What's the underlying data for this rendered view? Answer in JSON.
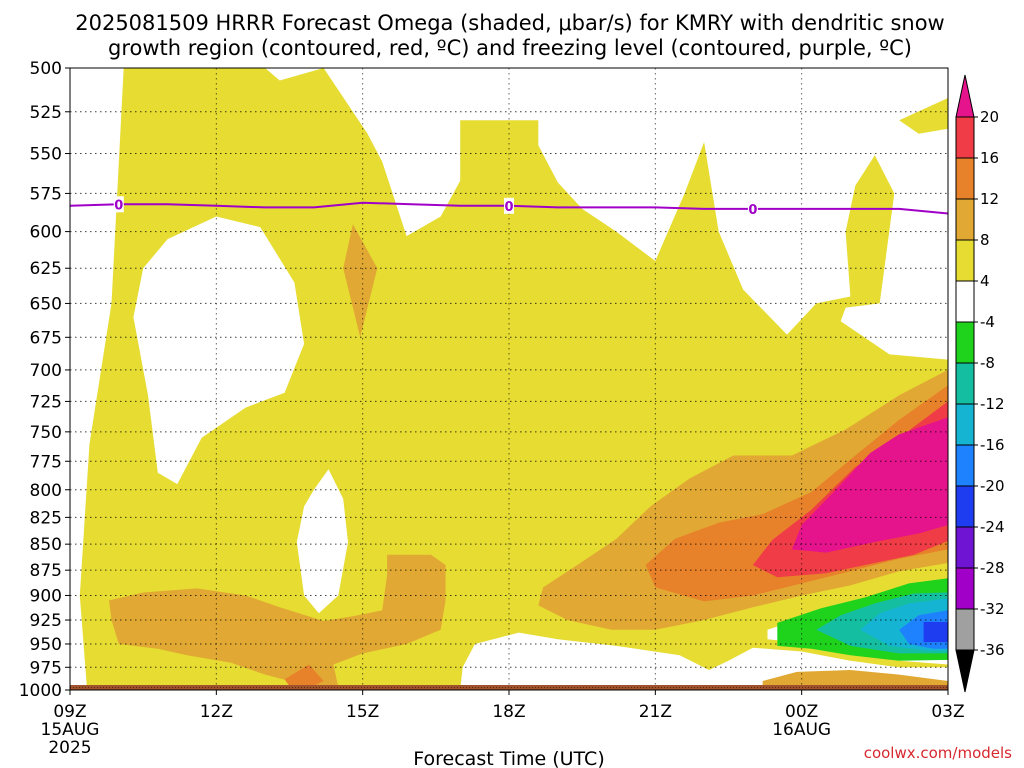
{
  "title_line1": "2025081509 HRRR Forecast Omega (shaded, μbar/s) for KMRY with dendritic snow",
  "title_line2": "growth region (contoured, red, ºC) and freezing level (contoured, purple, ºC)",
  "credit": "coolwx.com/models",
  "colors": {
    "yellow": "#e6dc32",
    "gold": "#e1a933",
    "orange": "#e8822a",
    "red": "#f03c46",
    "magenta": "#e6148c",
    "green": "#1fd21c",
    "teal": "#14bea0",
    "cyan": "#14b4d2",
    "blue": "#1e82ff",
    "freezing_line": "#a000c8",
    "ground": "#a0522d"
  },
  "chart_data": {
    "type": "heatmap",
    "xlabel": "Forecast Time (UTC)",
    "x_ticks": [
      {
        "label": "09Z",
        "hour": 0,
        "sub1": "15AUG",
        "sub2": "2025"
      },
      {
        "label": "12Z",
        "hour": 3,
        "sub1": "",
        "sub2": ""
      },
      {
        "label": "15Z",
        "hour": 6,
        "sub1": "",
        "sub2": ""
      },
      {
        "label": "18Z",
        "hour": 9,
        "sub1": "",
        "sub2": ""
      },
      {
        "label": "21Z",
        "hour": 12,
        "sub1": "",
        "sub2": ""
      },
      {
        "label": "00Z",
        "hour": 15,
        "sub1": "16AUG",
        "sub2": ""
      },
      {
        "label": "03Z",
        "hour": 18,
        "sub1": "",
        "sub2": ""
      }
    ],
    "xlim_hours": [
      0,
      18
    ],
    "y_ticks": [
      "500",
      "525",
      "550",
      "575",
      "600",
      "625",
      "650",
      "675",
      "700",
      "725",
      "750",
      "775",
      "800",
      "825",
      "850",
      "875",
      "900",
      "925",
      "950",
      "975",
      "1000"
    ],
    "y_log_pressure": true,
    "ylim_hpa": [
      500,
      1000
    ],
    "grid": true,
    "colorbar": {
      "labels": [
        "20",
        "16",
        "12",
        "8",
        "4",
        "-4",
        "-8",
        "-12",
        "-16",
        "-20",
        "-24",
        "-28",
        "-32",
        "-36"
      ],
      "bins": [
        {
          "color": "#e6148c"
        },
        {
          "color": "#f03c46"
        },
        {
          "color": "#e8822a"
        },
        {
          "color": "#e1a933"
        },
        {
          "color": "#e6dc32"
        },
        {
          "color": "#ffffff"
        },
        {
          "color": "#1fd21c"
        },
        {
          "color": "#14bea0"
        },
        {
          "color": "#14b4d2"
        },
        {
          "color": "#1e82ff"
        },
        {
          "color": "#1e3cf0"
        },
        {
          "color": "#6e14d2"
        },
        {
          "color": "#a000c8"
        },
        {
          "color": "#a0a0a0"
        }
      ]
    },
    "freezing_level": {
      "label": "0",
      "label_hours": [
        1,
        9,
        14
      ],
      "points": [
        {
          "hour": 0,
          "hpa": 583
        },
        {
          "hour": 1,
          "hpa": 582
        },
        {
          "hour": 2,
          "hpa": 582
        },
        {
          "hour": 3,
          "hpa": 583
        },
        {
          "hour": 4,
          "hpa": 584
        },
        {
          "hour": 5,
          "hpa": 584
        },
        {
          "hour": 6,
          "hpa": 581
        },
        {
          "hour": 7,
          "hpa": 582
        },
        {
          "hour": 8,
          "hpa": 583
        },
        {
          "hour": 9,
          "hpa": 583
        },
        {
          "hour": 10,
          "hpa": 584
        },
        {
          "hour": 11,
          "hpa": 584
        },
        {
          "hour": 12,
          "hpa": 584
        },
        {
          "hour": 13,
          "hpa": 585
        },
        {
          "hour": 14,
          "hpa": 585
        },
        {
          "hour": 15,
          "hpa": 585
        },
        {
          "hour": 16,
          "hpa": 585
        },
        {
          "hour": 17,
          "hpa": 585
        },
        {
          "hour": 18,
          "hpa": 588
        }
      ]
    },
    "regions": [
      {
        "name": "yellow-omega-4-8",
        "color": "#e6dc32",
        "pts": [
          [
            0,
            500
          ],
          [
            18,
            500
          ],
          [
            18,
            1000
          ],
          [
            0,
            1000
          ]
        ]
      },
      {
        "name": "white-top-left",
        "color": "#ffffff",
        "pts": [
          [
            0,
            500
          ],
          [
            1.1,
            500
          ],
          [
            0.85,
            650
          ],
          [
            0.4,
            760
          ],
          [
            0.2,
            900
          ],
          [
            0.35,
            1000
          ],
          [
            0,
            1000
          ]
        ]
      },
      {
        "name": "white-top-mid",
        "color": "#ffffff",
        "pts": [
          [
            4.0,
            500
          ],
          [
            4.3,
            507
          ],
          [
            5.2,
            500
          ]
        ]
      },
      {
        "name": "white-top-center",
        "color": "#ffffff",
        "pts": [
          [
            5.2,
            500
          ],
          [
            6.1,
            538
          ],
          [
            6.4,
            555
          ],
          [
            6.9,
            603
          ],
          [
            7.6,
            590
          ],
          [
            8.0,
            567
          ],
          [
            8.0,
            530
          ],
          [
            9.6,
            530
          ],
          [
            9.6,
            545
          ],
          [
            10.0,
            568
          ],
          [
            10.5,
            585
          ],
          [
            11.2,
            600
          ],
          [
            12.0,
            620
          ],
          [
            12.6,
            575
          ],
          [
            13.0,
            543
          ],
          [
            13.3,
            600
          ],
          [
            13.8,
            640
          ],
          [
            14.7,
            673
          ],
          [
            15.3,
            650
          ],
          [
            16.0,
            645
          ],
          [
            15.9,
            600
          ],
          [
            16.1,
            570
          ],
          [
            16.5,
            551
          ],
          [
            16.9,
            575
          ],
          [
            16.6,
            650
          ],
          [
            15.9,
            653
          ],
          [
            15.8,
            663
          ],
          [
            16.8,
            688
          ],
          [
            18,
            692
          ],
          [
            18,
            500
          ]
        ]
      },
      {
        "name": "yellow-top-right-blob",
        "color": "#e6dc32",
        "pts": [
          [
            17.0,
            530
          ],
          [
            18,
            517
          ],
          [
            18,
            535
          ],
          [
            17.4,
            538
          ]
        ]
      },
      {
        "name": "white-oval-left",
        "color": "#ffffff",
        "pts": [
          [
            2.0,
            605
          ],
          [
            3.0,
            590
          ],
          [
            3.9,
            597
          ],
          [
            4.6,
            635
          ],
          [
            4.8,
            680
          ],
          [
            4.4,
            718
          ],
          [
            3.6,
            730
          ],
          [
            2.7,
            755
          ],
          [
            2.2,
            795
          ],
          [
            1.8,
            785
          ],
          [
            1.6,
            720
          ],
          [
            1.3,
            660
          ],
          [
            1.5,
            625
          ]
        ]
      },
      {
        "name": "white-oval-mid",
        "color": "#ffffff",
        "pts": [
          [
            5.0,
            800
          ],
          [
            5.3,
            782
          ],
          [
            5.6,
            808
          ],
          [
            5.7,
            848
          ],
          [
            5.5,
            900
          ],
          [
            5.1,
            918
          ],
          [
            4.8,
            900
          ],
          [
            4.65,
            848
          ],
          [
            4.8,
            815
          ]
        ]
      },
      {
        "name": "white-bottom-mid",
        "color": "#ffffff",
        "pts": [
          [
            8.0,
            1000
          ],
          [
            8.05,
            975
          ],
          [
            8.3,
            950
          ],
          [
            9.2,
            938
          ],
          [
            10.0,
            945
          ],
          [
            11.2,
            952
          ],
          [
            12.5,
            962
          ],
          [
            13.1,
            978
          ],
          [
            13.5,
            968
          ],
          [
            14.0,
            954
          ],
          [
            15.0,
            958
          ],
          [
            16.0,
            968
          ],
          [
            17.0,
            975
          ],
          [
            18,
            975
          ],
          [
            18,
            1000
          ]
        ]
      },
      {
        "name": "gold-bottom-left",
        "color": "#e1a933",
        "pts": [
          [
            0.8,
            905
          ],
          [
            1.5,
            897
          ],
          [
            2.6,
            893
          ],
          [
            3.6,
            900
          ],
          [
            4.3,
            912
          ],
          [
            5.2,
            926
          ],
          [
            5.8,
            921
          ],
          [
            6.4,
            915
          ],
          [
            6.5,
            880
          ],
          [
            6.5,
            860
          ],
          [
            7.4,
            860
          ],
          [
            7.7,
            870
          ],
          [
            7.7,
            905
          ],
          [
            7.6,
            935
          ],
          [
            6.9,
            950
          ],
          [
            6.0,
            960
          ],
          [
            5.4,
            972
          ],
          [
            5.5,
            997
          ],
          [
            5.0,
            1000
          ],
          [
            4.5,
            990
          ],
          [
            4.0,
            983
          ],
          [
            3.3,
            970
          ],
          [
            2.4,
            962
          ],
          [
            1.8,
            955
          ],
          [
            1.0,
            950
          ],
          [
            0.85,
            925
          ]
        ]
      },
      {
        "name": "orange-bottom-left",
        "color": "#e8822a",
        "pts": [
          [
            4.4,
            988
          ],
          [
            4.9,
            972
          ],
          [
            5.2,
            990
          ],
          [
            4.9,
            998
          ],
          [
            4.5,
            996
          ]
        ]
      },
      {
        "name": "gold-bottom-right",
        "color": "#e1a933",
        "pts": [
          [
            14.2,
            990
          ],
          [
            14.9,
            980
          ],
          [
            16.0,
            978
          ],
          [
            17.0,
            983
          ],
          [
            18,
            990
          ],
          [
            18,
            1000
          ],
          [
            14.2,
            1000
          ]
        ]
      },
      {
        "name": "gold-right",
        "color": "#e1a933",
        "pts": [
          [
            18,
            700
          ],
          [
            17.0,
            720
          ],
          [
            15.9,
            748
          ],
          [
            14.8,
            770
          ],
          [
            13.6,
            770
          ],
          [
            12.7,
            790
          ],
          [
            11.9,
            815
          ],
          [
            11.2,
            845
          ],
          [
            10.4,
            870
          ],
          [
            9.7,
            892
          ],
          [
            9.6,
            910
          ],
          [
            10.2,
            925
          ],
          [
            11.1,
            935
          ],
          [
            12.0,
            935
          ],
          [
            13.0,
            925
          ],
          [
            14.0,
            912
          ],
          [
            15.0,
            900
          ],
          [
            16.0,
            890
          ],
          [
            17.0,
            876
          ],
          [
            18,
            868
          ]
        ]
      },
      {
        "name": "orange-right",
        "color": "#e8822a",
        "pts": [
          [
            18,
            712
          ],
          [
            17.0,
            740
          ],
          [
            16.1,
            770
          ],
          [
            15.2,
            802
          ],
          [
            14.2,
            822
          ],
          [
            13.3,
            830
          ],
          [
            12.4,
            845
          ],
          [
            11.8,
            870
          ],
          [
            12.0,
            892
          ],
          [
            13.0,
            906
          ],
          [
            14.0,
            900
          ],
          [
            15.0,
            888
          ],
          [
            16.0,
            876
          ],
          [
            17.0,
            864
          ],
          [
            18,
            855
          ]
        ]
      },
      {
        "name": "red-right",
        "color": "#f03c46",
        "pts": [
          [
            18,
            725
          ],
          [
            17.0,
            755
          ],
          [
            16.1,
            780
          ],
          [
            15.2,
            818
          ],
          [
            14.4,
            846
          ],
          [
            14.0,
            870
          ],
          [
            14.5,
            882
          ],
          [
            15.5,
            878
          ],
          [
            16.5,
            868
          ],
          [
            17.3,
            860
          ],
          [
            18,
            847
          ]
        ]
      },
      {
        "name": "magenta-right",
        "color": "#e6148c",
        "pts": [
          [
            18,
            738
          ],
          [
            17.0,
            752
          ],
          [
            16.4,
            768
          ],
          [
            15.7,
            800
          ],
          [
            15.0,
            832
          ],
          [
            14.8,
            855
          ],
          [
            15.5,
            858
          ],
          [
            16.5,
            848
          ],
          [
            17.4,
            840
          ],
          [
            18,
            832
          ]
        ]
      },
      {
        "name": "white-green-gap",
        "color": "#ffffff",
        "pts": [
          [
            14.3,
            935
          ],
          [
            15.2,
            920
          ],
          [
            16.2,
            905
          ],
          [
            17.2,
            890
          ],
          [
            18,
            885
          ],
          [
            18,
            972
          ],
          [
            17.0,
            968
          ],
          [
            16.0,
            960
          ],
          [
            15.2,
            950
          ],
          [
            14.3,
            945
          ]
        ]
      },
      {
        "name": "green-right",
        "color": "#1fd21c",
        "pts": [
          [
            18,
            883
          ],
          [
            17.2,
            888
          ],
          [
            16.3,
            902
          ],
          [
            15.4,
            913
          ],
          [
            14.5,
            928
          ],
          [
            14.5,
            952
          ],
          [
            15.2,
            955
          ],
          [
            16.0,
            962
          ],
          [
            17.0,
            968
          ],
          [
            18,
            967
          ]
        ]
      },
      {
        "name": "teal-right",
        "color": "#14bea0",
        "pts": [
          [
            18,
            897
          ],
          [
            17.3,
            898
          ],
          [
            16.5,
            908
          ],
          [
            15.8,
            920
          ],
          [
            15.3,
            935
          ],
          [
            16.0,
            952
          ],
          [
            17.0,
            960
          ],
          [
            18,
            960
          ]
        ]
      },
      {
        "name": "cyan-right",
        "color": "#14b4d2",
        "pts": [
          [
            18,
            903
          ],
          [
            17.2,
            908
          ],
          [
            16.6,
            918
          ],
          [
            16.2,
            935
          ],
          [
            16.8,
            952
          ],
          [
            17.6,
            957
          ],
          [
            18,
            957
          ]
        ]
      },
      {
        "name": "blue-right",
        "color": "#1e82ff",
        "pts": [
          [
            18,
            915
          ],
          [
            17.4,
            920
          ],
          [
            17.0,
            935
          ],
          [
            17.2,
            950
          ],
          [
            17.7,
            955
          ],
          [
            18,
            955
          ]
        ]
      },
      {
        "name": "darkblue-right",
        "color": "#1e3cf0",
        "pts": [
          [
            17.5,
            927
          ],
          [
            18,
            927
          ],
          [
            18,
            948
          ],
          [
            17.5,
            948
          ]
        ]
      },
      {
        "name": "gold-sliver-mid",
        "color": "#e1a933",
        "pts": [
          [
            5.8,
            595
          ],
          [
            6.3,
            625
          ],
          [
            5.95,
            675
          ],
          [
            5.6,
            625
          ]
        ]
      }
    ]
  }
}
